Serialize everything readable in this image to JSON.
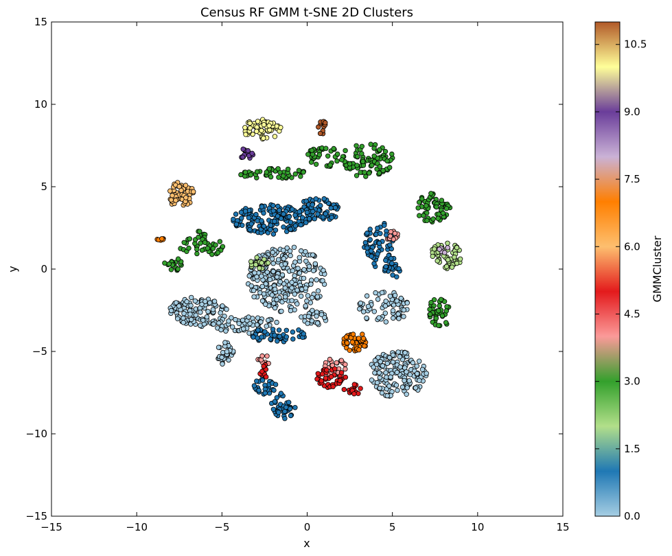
{
  "chart_data": {
    "type": "scatter",
    "title": "Census RF GMM t-SNE 2D Clusters",
    "xlabel": "x",
    "ylabel": "y",
    "xlim": [
      -15,
      15
    ],
    "ylim": [
      -15,
      15
    ],
    "x_ticks": [
      "−15",
      "−10",
      "−5",
      "0",
      "5",
      "10",
      "15"
    ],
    "y_ticks": [
      "−15",
      "−10",
      "−5",
      "0",
      "5",
      "10",
      "15"
    ],
    "grid": false,
    "colorbar": {
      "label": "GMMCluster",
      "range": [
        0.0,
        11.0
      ],
      "ticks": [
        "0.0",
        "1.5",
        "3.0",
        "4.5",
        "6.0",
        "7.5",
        "9.0",
        "10.5"
      ],
      "colormap": "Paired"
    },
    "clusters": [
      {
        "cluster": 0,
        "color": "#a6cee3",
        "regions": [
          {
            "cx": -1.2,
            "cy": -0.6,
            "rx": 2.3,
            "ry": 2.0,
            "n": 260
          },
          {
            "cx": -6.4,
            "cy": -2.6,
            "rx": 1.7,
            "ry": 0.9,
            "n": 110
          },
          {
            "cx": 5.3,
            "cy": -6.4,
            "rx": 1.7,
            "ry": 1.4,
            "n": 150
          },
          {
            "cx": 4.5,
            "cy": -2.3,
            "rx": 1.5,
            "ry": 1.0,
            "n": 70
          },
          {
            "cx": -3.6,
            "cy": -3.4,
            "rx": 2.0,
            "ry": 0.5,
            "n": 60
          },
          {
            "cx": -4.8,
            "cy": -5.1,
            "rx": 0.5,
            "ry": 0.7,
            "n": 30
          },
          {
            "cx": 0.4,
            "cy": -3.0,
            "rx": 0.8,
            "ry": 0.5,
            "n": 25
          }
        ]
      },
      {
        "cluster": 1,
        "color": "#1f78b4",
        "regions": [
          {
            "cx": -2.2,
            "cy": 3.0,
            "rx": 2.2,
            "ry": 0.9,
            "n": 150
          },
          {
            "cx": 0.7,
            "cy": 3.6,
            "rx": 1.3,
            "ry": 0.7,
            "n": 70
          },
          {
            "cx": 4.2,
            "cy": 1.5,
            "rx": 0.9,
            "ry": 1.4,
            "n": 55
          },
          {
            "cx": 5.0,
            "cy": 0.2,
            "rx": 0.5,
            "ry": 0.8,
            "n": 25
          },
          {
            "cx": -1.7,
            "cy": -4.0,
            "rx": 1.6,
            "ry": 0.5,
            "n": 45
          },
          {
            "cx": -1.4,
            "cy": -8.3,
            "rx": 0.7,
            "ry": 0.8,
            "n": 40
          },
          {
            "cx": -2.5,
            "cy": -7.1,
            "rx": 0.7,
            "ry": 0.5,
            "n": 25
          }
        ]
      },
      {
        "cluster": 2,
        "color": "#b2df8a",
        "regions": [
          {
            "cx": 8.2,
            "cy": 0.8,
            "rx": 1.0,
            "ry": 0.8,
            "n": 55
          },
          {
            "cx": -2.8,
            "cy": 0.4,
            "rx": 0.6,
            "ry": 0.4,
            "n": 18
          }
        ]
      },
      {
        "cluster": 3,
        "color": "#33a02c",
        "regions": [
          {
            "cx": 3.5,
            "cy": 6.6,
            "rx": 1.6,
            "ry": 1.0,
            "n": 90
          },
          {
            "cx": 1.0,
            "cy": 6.8,
            "rx": 1.1,
            "ry": 0.6,
            "n": 40
          },
          {
            "cx": -2.0,
            "cy": 5.8,
            "rx": 2.0,
            "ry": 0.3,
            "n": 45
          },
          {
            "cx": 7.4,
            "cy": 3.7,
            "rx": 1.0,
            "ry": 0.9,
            "n": 60
          },
          {
            "cx": 7.7,
            "cy": -2.7,
            "rx": 0.7,
            "ry": 0.9,
            "n": 40
          },
          {
            "cx": -6.2,
            "cy": 1.5,
            "rx": 1.3,
            "ry": 0.8,
            "n": 45
          },
          {
            "cx": -7.8,
            "cy": 0.3,
            "rx": 0.6,
            "ry": 0.4,
            "n": 20
          }
        ]
      },
      {
        "cluster": 4,
        "color": "#fb9a99",
        "regions": [
          {
            "cx": 1.6,
            "cy": -6.0,
            "rx": 0.7,
            "ry": 0.6,
            "n": 30
          },
          {
            "cx": 5.0,
            "cy": 2.0,
            "rx": 0.4,
            "ry": 0.3,
            "n": 12
          },
          {
            "cx": -2.5,
            "cy": -5.5,
            "rx": 0.4,
            "ry": 0.5,
            "n": 10
          }
        ]
      },
      {
        "cluster": 5,
        "color": "#e31a1c",
        "regions": [
          {
            "cx": 1.4,
            "cy": -6.6,
            "rx": 0.9,
            "ry": 0.6,
            "n": 40
          },
          {
            "cx": 2.7,
            "cy": -7.3,
            "rx": 0.6,
            "ry": 0.3,
            "n": 15
          },
          {
            "cx": -2.6,
            "cy": -6.2,
            "rx": 0.3,
            "ry": 0.5,
            "n": 12
          }
        ]
      },
      {
        "cluster": 6,
        "color": "#fdbf6f",
        "regions": [
          {
            "cx": -7.4,
            "cy": 4.5,
            "rx": 0.8,
            "ry": 0.8,
            "n": 55
          }
        ]
      },
      {
        "cluster": 7,
        "color": "#ff7f00",
        "regions": [
          {
            "cx": 2.8,
            "cy": -4.4,
            "rx": 0.7,
            "ry": 0.6,
            "n": 45
          },
          {
            "cx": -8.6,
            "cy": 1.8,
            "rx": 0.2,
            "ry": 0.15,
            "n": 6
          }
        ]
      },
      {
        "cluster": 8,
        "color": "#cab2d6",
        "regions": [
          {
            "cx": 8.0,
            "cy": 1.2,
            "rx": 0.3,
            "ry": 0.2,
            "n": 6
          }
        ]
      },
      {
        "cluster": 9,
        "color": "#6a3d9a",
        "regions": [
          {
            "cx": -3.6,
            "cy": 7.0,
            "rx": 0.5,
            "ry": 0.3,
            "n": 14
          }
        ]
      },
      {
        "cluster": 10,
        "color": "#ffff99",
        "regions": [
          {
            "cx": -2.6,
            "cy": 8.5,
            "rx": 1.2,
            "ry": 0.6,
            "n": 60
          }
        ]
      },
      {
        "cluster": 11,
        "color": "#b15928",
        "regions": [
          {
            "cx": 0.9,
            "cy": 8.6,
            "rx": 0.4,
            "ry": 0.4,
            "n": 12
          }
        ]
      }
    ]
  }
}
